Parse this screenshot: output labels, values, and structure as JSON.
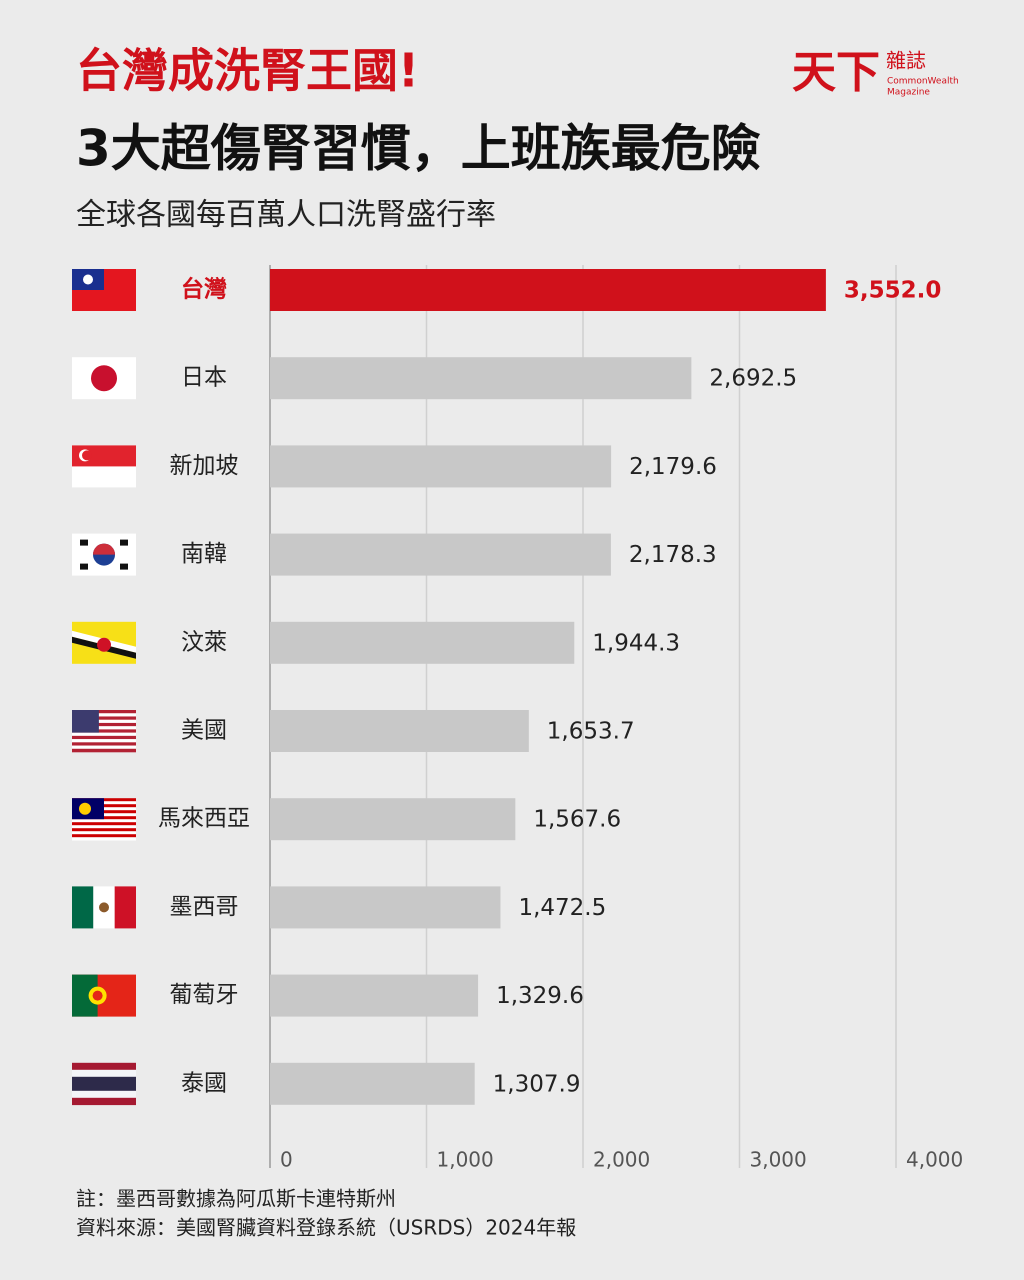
{
  "logo": {
    "brand": "天下",
    "name": "雜誌",
    "english": "CommonWealth",
    "english2": "Magazine"
  },
  "chart_data": {
    "type": "bar",
    "orientation": "horizontal",
    "title": "台灣成洗腎王國!",
    "subtitle": "3大超傷腎習慣，上班族最危險",
    "caption": "全球各國每百萬人口洗腎盛行率",
    "categories": [
      "台灣",
      "日本",
      "新加坡",
      "南韓",
      "汶萊",
      "美國",
      "馬來西亞",
      "墨西哥",
      "葡萄牙",
      "泰國"
    ],
    "values": [
      3552.0,
      2692.5,
      2179.6,
      2178.3,
      1944.3,
      1653.7,
      1567.6,
      1472.5,
      1329.6,
      1307.9
    ],
    "value_labels": [
      "3,552.0",
      "2,692.5",
      "2,179.6",
      "2,178.3",
      "1,944.3",
      "1,653.7",
      "1,567.6",
      "1,472.5",
      "1,329.6",
      "1,307.9"
    ],
    "colors": [
      "#d0111b",
      "#c8c8c8",
      "#c8c8c8",
      "#c8c8c8",
      "#c8c8c8",
      "#c8c8c8",
      "#c8c8c8",
      "#c8c8c8",
      "#c8c8c8",
      "#c8c8c8"
    ],
    "xlim": [
      0,
      4000
    ],
    "xticks": [
      0,
      {
        "value": 1000,
        "label": "1,000"
      },
      {
        "value": 2000,
        "label": "2,000"
      },
      {
        "value": 3000,
        "label": "3,000"
      },
      {
        "value": 4000,
        "label": "4,000"
      }
    ],
    "grid": true,
    "notes": [
      "註：墨西哥數據為阿瓜斯卡連特斯州",
      "資料來源：美國腎臟資料登錄系統（USRDS）2024年報"
    ]
  }
}
